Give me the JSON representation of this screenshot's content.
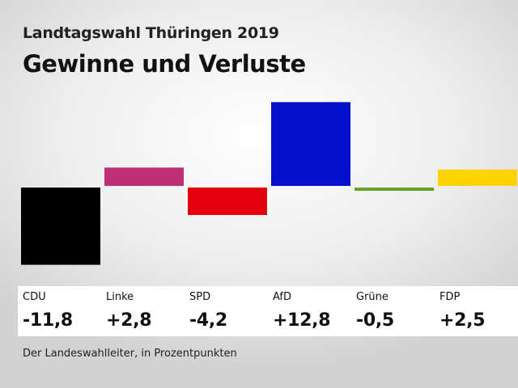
{
  "header": {
    "kicker": "Landtagswahl Thüringen 2019",
    "title": "Gewinne und Verluste"
  },
  "source": "Der Landeswahlleiter, in Prozentpunkten",
  "chart_data": {
    "type": "bar",
    "title": "Gewinne und Verluste",
    "categories": [
      "CDU",
      "Linke",
      "SPD",
      "AfD",
      "Grüne",
      "FDP"
    ],
    "values": [
      -11.8,
      2.8,
      -4.2,
      12.8,
      -0.5,
      2.5
    ],
    "value_labels": [
      "-11,8",
      "+2,8",
      "-4,2",
      "+12,8",
      "-0,5",
      "+2,5"
    ],
    "colors": [
      "#000000",
      "#be3075",
      "#e3000f",
      "#0511cb",
      "#64a12d",
      "#ffd300"
    ],
    "ylim": [
      -12,
      13
    ],
    "grid": false,
    "legend": "none"
  }
}
